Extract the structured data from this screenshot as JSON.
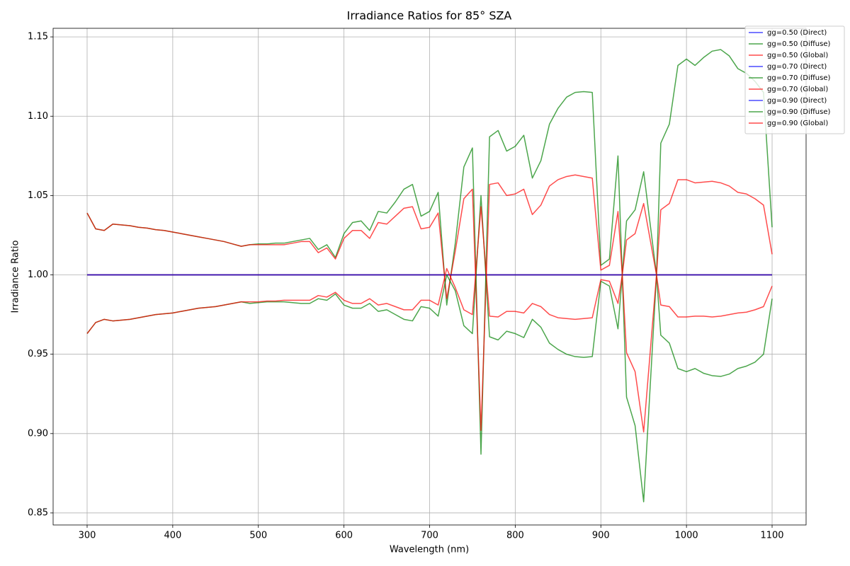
{
  "chart_data": {
    "type": "line",
    "title": "Irradiance Ratios for 85° SZA",
    "xlabel": "Wavelength (nm)",
    "ylabel": "Irradiance Ratio",
    "x": [
      300,
      310,
      320,
      330,
      340,
      350,
      360,
      370,
      380,
      390,
      400,
      410,
      420,
      430,
      440,
      450,
      460,
      470,
      480,
      490,
      500,
      510,
      520,
      530,
      540,
      550,
      560,
      570,
      580,
      590,
      600,
      610,
      620,
      630,
      640,
      650,
      660,
      670,
      680,
      690,
      700,
      710,
      720,
      730,
      740,
      750,
      760,
      770,
      780,
      790,
      800,
      810,
      820,
      830,
      840,
      850,
      860,
      870,
      880,
      890,
      900,
      910,
      920,
      925,
      930,
      940,
      950,
      965,
      970,
      980,
      990,
      1000,
      1010,
      1020,
      1030,
      1040,
      1050,
      1060,
      1070,
      1080,
      1090,
      1100
    ],
    "series": [
      {
        "name": "gg=0.50 (Direct)",
        "color": "#0000ff",
        "values": [
          1,
          1,
          1,
          1,
          1,
          1,
          1,
          1,
          1,
          1,
          1,
          1,
          1,
          1,
          1,
          1,
          1,
          1,
          1,
          1,
          1,
          1,
          1,
          1,
          1,
          1,
          1,
          1,
          1,
          1,
          1,
          1,
          1,
          1,
          1,
          1,
          1,
          1,
          1,
          1,
          1,
          1,
          1,
          1,
          1,
          1,
          1,
          1,
          1,
          1,
          1,
          1,
          1,
          1,
          1,
          1,
          1,
          1,
          1,
          1,
          1,
          1,
          1,
          1,
          1,
          1,
          1,
          1,
          1,
          1,
          1,
          1,
          1,
          1,
          1,
          1,
          1,
          1,
          1,
          1,
          1,
          1
        ]
      },
      {
        "name": "gg=0.50 (Diffuse)",
        "color": "#008000",
        "values": [
          1.039,
          1.029,
          1.028,
          1.032,
          1.0315,
          1.031,
          1.03,
          1.0295,
          1.0285,
          1.028,
          1.027,
          1.026,
          1.025,
          1.024,
          1.023,
          1.022,
          1.021,
          1.0195,
          1.018,
          1.019,
          1.0195,
          1.0195,
          1.02,
          1.02,
          1.021,
          1.022,
          1.023,
          1.016,
          1.019,
          1.011,
          1.026,
          1.033,
          1.034,
          1.028,
          1.04,
          1.039,
          1.046,
          1.054,
          1.057,
          1.037,
          1.04,
          1.052,
          0.981,
          1.02,
          1.068,
          1.08,
          0.887,
          1.087,
          1.091,
          1.078,
          1.081,
          1.088,
          1.061,
          1.072,
          1.095,
          1.105,
          1.112,
          1.115,
          1.1155,
          1.115,
          1.006,
          1.01,
          1.075,
          1.0,
          1.034,
          1.041,
          1.065,
          1.0,
          1.083,
          1.095,
          1.132,
          1.136,
          1.132,
          1.137,
          1.141,
          1.142,
          1.138,
          1.13,
          1.127,
          1.122,
          1.115,
          1.03
        ]
      },
      {
        "name": "gg=0.50 (Global)",
        "color": "#ff0000",
        "values": [
          1.039,
          1.029,
          1.028,
          1.032,
          1.0315,
          1.031,
          1.03,
          1.0295,
          1.0285,
          1.028,
          1.027,
          1.026,
          1.025,
          1.024,
          1.023,
          1.022,
          1.021,
          1.0195,
          1.018,
          1.019,
          1.019,
          1.019,
          1.019,
          1.019,
          1.02,
          1.021,
          1.021,
          1.014,
          1.017,
          1.01,
          1.023,
          1.028,
          1.028,
          1.023,
          1.033,
          1.032,
          1.037,
          1.042,
          1.043,
          1.029,
          1.03,
          1.039,
          0.985,
          1.015,
          1.048,
          1.054,
          0.902,
          1.057,
          1.058,
          1.05,
          1.051,
          1.054,
          1.038,
          1.044,
          1.056,
          1.06,
          1.062,
          1.063,
          1.062,
          1.061,
          1.003,
          1.006,
          1.04,
          1.0,
          1.022,
          1.026,
          1.045,
          1.0,
          1.041,
          1.045,
          1.06,
          1.06,
          1.058,
          1.0585,
          1.059,
          1.058,
          1.056,
          1.052,
          1.051,
          1.048,
          1.044,
          1.013
        ]
      },
      {
        "name": "gg=0.70 (Direct)",
        "color": "#0000ff",
        "values": [
          1,
          1,
          1,
          1,
          1,
          1,
          1,
          1,
          1,
          1,
          1,
          1,
          1,
          1,
          1,
          1,
          1,
          1,
          1,
          1,
          1,
          1,
          1,
          1,
          1,
          1,
          1,
          1,
          1,
          1,
          1,
          1,
          1,
          1,
          1,
          1,
          1,
          1,
          1,
          1,
          1,
          1,
          1,
          1,
          1,
          1,
          1,
          1,
          1,
          1,
          1,
          1,
          1,
          1,
          1,
          1,
          1,
          1,
          1,
          1,
          1,
          1,
          1,
          1,
          1,
          1,
          1,
          1,
          1,
          1,
          1,
          1,
          1,
          1,
          1,
          1,
          1,
          1,
          1,
          1,
          1,
          1
        ]
      },
      {
        "name": "gg=0.70 (Diffuse)",
        "color": "#008000",
        "values": [
          1,
          1,
          1,
          1,
          1,
          1,
          1,
          1,
          1,
          1,
          1,
          1,
          1,
          1,
          1,
          1,
          1,
          1,
          1,
          1,
          1,
          1,
          1,
          1,
          1,
          1,
          1,
          1,
          1,
          1,
          1,
          1,
          1,
          1,
          1,
          1,
          1,
          1,
          1,
          1,
          1,
          1,
          1,
          1,
          1,
          1,
          1,
          1,
          1,
          1,
          1,
          1,
          1,
          1,
          1,
          1,
          1,
          1,
          1,
          1,
          1,
          1,
          1,
          1,
          1,
          1,
          1,
          1,
          1,
          1,
          1,
          1,
          1,
          1,
          1,
          1,
          1,
          1,
          1,
          1,
          1,
          1
        ]
      },
      {
        "name": "gg=0.70 (Global)",
        "color": "#ff0000",
        "values": [
          1,
          1,
          1,
          1,
          1,
          1,
          1,
          1,
          1,
          1,
          1,
          1,
          1,
          1,
          1,
          1,
          1,
          1,
          1,
          1,
          1,
          1,
          1,
          1,
          1,
          1,
          1,
          1,
          1,
          1,
          1,
          1,
          1,
          1,
          1,
          1,
          1,
          1,
          1,
          1,
          1,
          1,
          1,
          1,
          1,
          1,
          1,
          1,
          1,
          1,
          1,
          1,
          1,
          1,
          1,
          1,
          1,
          1,
          1,
          1,
          1,
          1,
          1,
          1,
          1,
          1,
          1,
          1,
          1,
          1,
          1,
          1,
          1,
          1,
          1,
          1,
          1,
          1,
          1,
          1,
          1,
          1
        ]
      },
      {
        "name": "gg=0.90 (Direct)",
        "color": "#0000ff",
        "values": [
          1,
          1,
          1,
          1,
          1,
          1,
          1,
          1,
          1,
          1,
          1,
          1,
          1,
          1,
          1,
          1,
          1,
          1,
          1,
          1,
          1,
          1,
          1,
          1,
          1,
          1,
          1,
          1,
          1,
          1,
          1,
          1,
          1,
          1,
          1,
          1,
          1,
          1,
          1,
          1,
          1,
          1,
          1,
          1,
          1,
          1,
          1,
          1,
          1,
          1,
          1,
          1,
          1,
          1,
          1,
          1,
          1,
          1,
          1,
          1,
          1,
          1,
          1,
          1,
          1,
          1,
          1,
          1,
          1,
          1,
          1,
          1,
          1,
          1,
          1,
          1,
          1,
          1,
          1,
          1,
          1,
          1
        ]
      },
      {
        "name": "gg=0.90 (Diffuse)",
        "color": "#008000",
        "values": [
          0.963,
          0.97,
          0.972,
          0.971,
          0.9715,
          0.972,
          0.973,
          0.974,
          0.975,
          0.9755,
          0.976,
          0.977,
          0.978,
          0.979,
          0.9795,
          0.98,
          0.981,
          0.982,
          0.983,
          0.982,
          0.9825,
          0.983,
          0.983,
          0.983,
          0.9825,
          0.982,
          0.982,
          0.985,
          0.984,
          0.988,
          0.981,
          0.979,
          0.979,
          0.982,
          0.977,
          0.978,
          0.975,
          0.972,
          0.971,
          0.98,
          0.979,
          0.974,
          1.0,
          0.99,
          0.968,
          0.963,
          1.05,
          0.961,
          0.959,
          0.9645,
          0.963,
          0.9605,
          0.972,
          0.967,
          0.957,
          0.953,
          0.95,
          0.9485,
          0.948,
          0.9485,
          0.996,
          0.993,
          0.966,
          1.0,
          0.923,
          0.905,
          0.857,
          1.0,
          0.962,
          0.957,
          0.941,
          0.939,
          0.941,
          0.938,
          0.9365,
          0.936,
          0.9375,
          0.941,
          0.9425,
          0.945,
          0.95,
          0.985
        ]
      },
      {
        "name": "gg=0.90 (Global)",
        "color": "#ff0000",
        "values": [
          0.963,
          0.97,
          0.972,
          0.971,
          0.9715,
          0.972,
          0.973,
          0.974,
          0.975,
          0.9755,
          0.976,
          0.977,
          0.978,
          0.979,
          0.9795,
          0.98,
          0.981,
          0.982,
          0.983,
          0.983,
          0.983,
          0.9835,
          0.9835,
          0.984,
          0.984,
          0.984,
          0.984,
          0.987,
          0.986,
          0.989,
          0.984,
          0.982,
          0.982,
          0.985,
          0.981,
          0.982,
          0.98,
          0.978,
          0.978,
          0.984,
          0.984,
          0.981,
          1.004,
          0.992,
          0.978,
          0.975,
          1.043,
          0.974,
          0.9735,
          0.977,
          0.977,
          0.976,
          0.982,
          0.98,
          0.975,
          0.973,
          0.9725,
          0.972,
          0.9725,
          0.973,
          0.997,
          0.996,
          0.982,
          1.0,
          0.951,
          0.939,
          0.901,
          1.0,
          0.981,
          0.98,
          0.9735,
          0.9735,
          0.974,
          0.974,
          0.9735,
          0.974,
          0.975,
          0.976,
          0.9765,
          0.978,
          0.98,
          0.993
        ]
      }
    ],
    "xlim": [
      260.3,
      1139.7
    ],
    "xticks": [
      300,
      400,
      500,
      600,
      700,
      800,
      900,
      1000,
      1100
    ],
    "ylim": [
      0.8424,
      1.1554
    ],
    "yticks": [
      0.85,
      {
        "value": 0.9,
        "label": "0.90"
      },
      0.95,
      {
        "value": 1.0,
        "label": "1.00"
      },
      1.05,
      {
        "value": 1.1,
        "label": "1.10"
      },
      1.15
    ],
    "grid": true,
    "legend": "upper right"
  }
}
